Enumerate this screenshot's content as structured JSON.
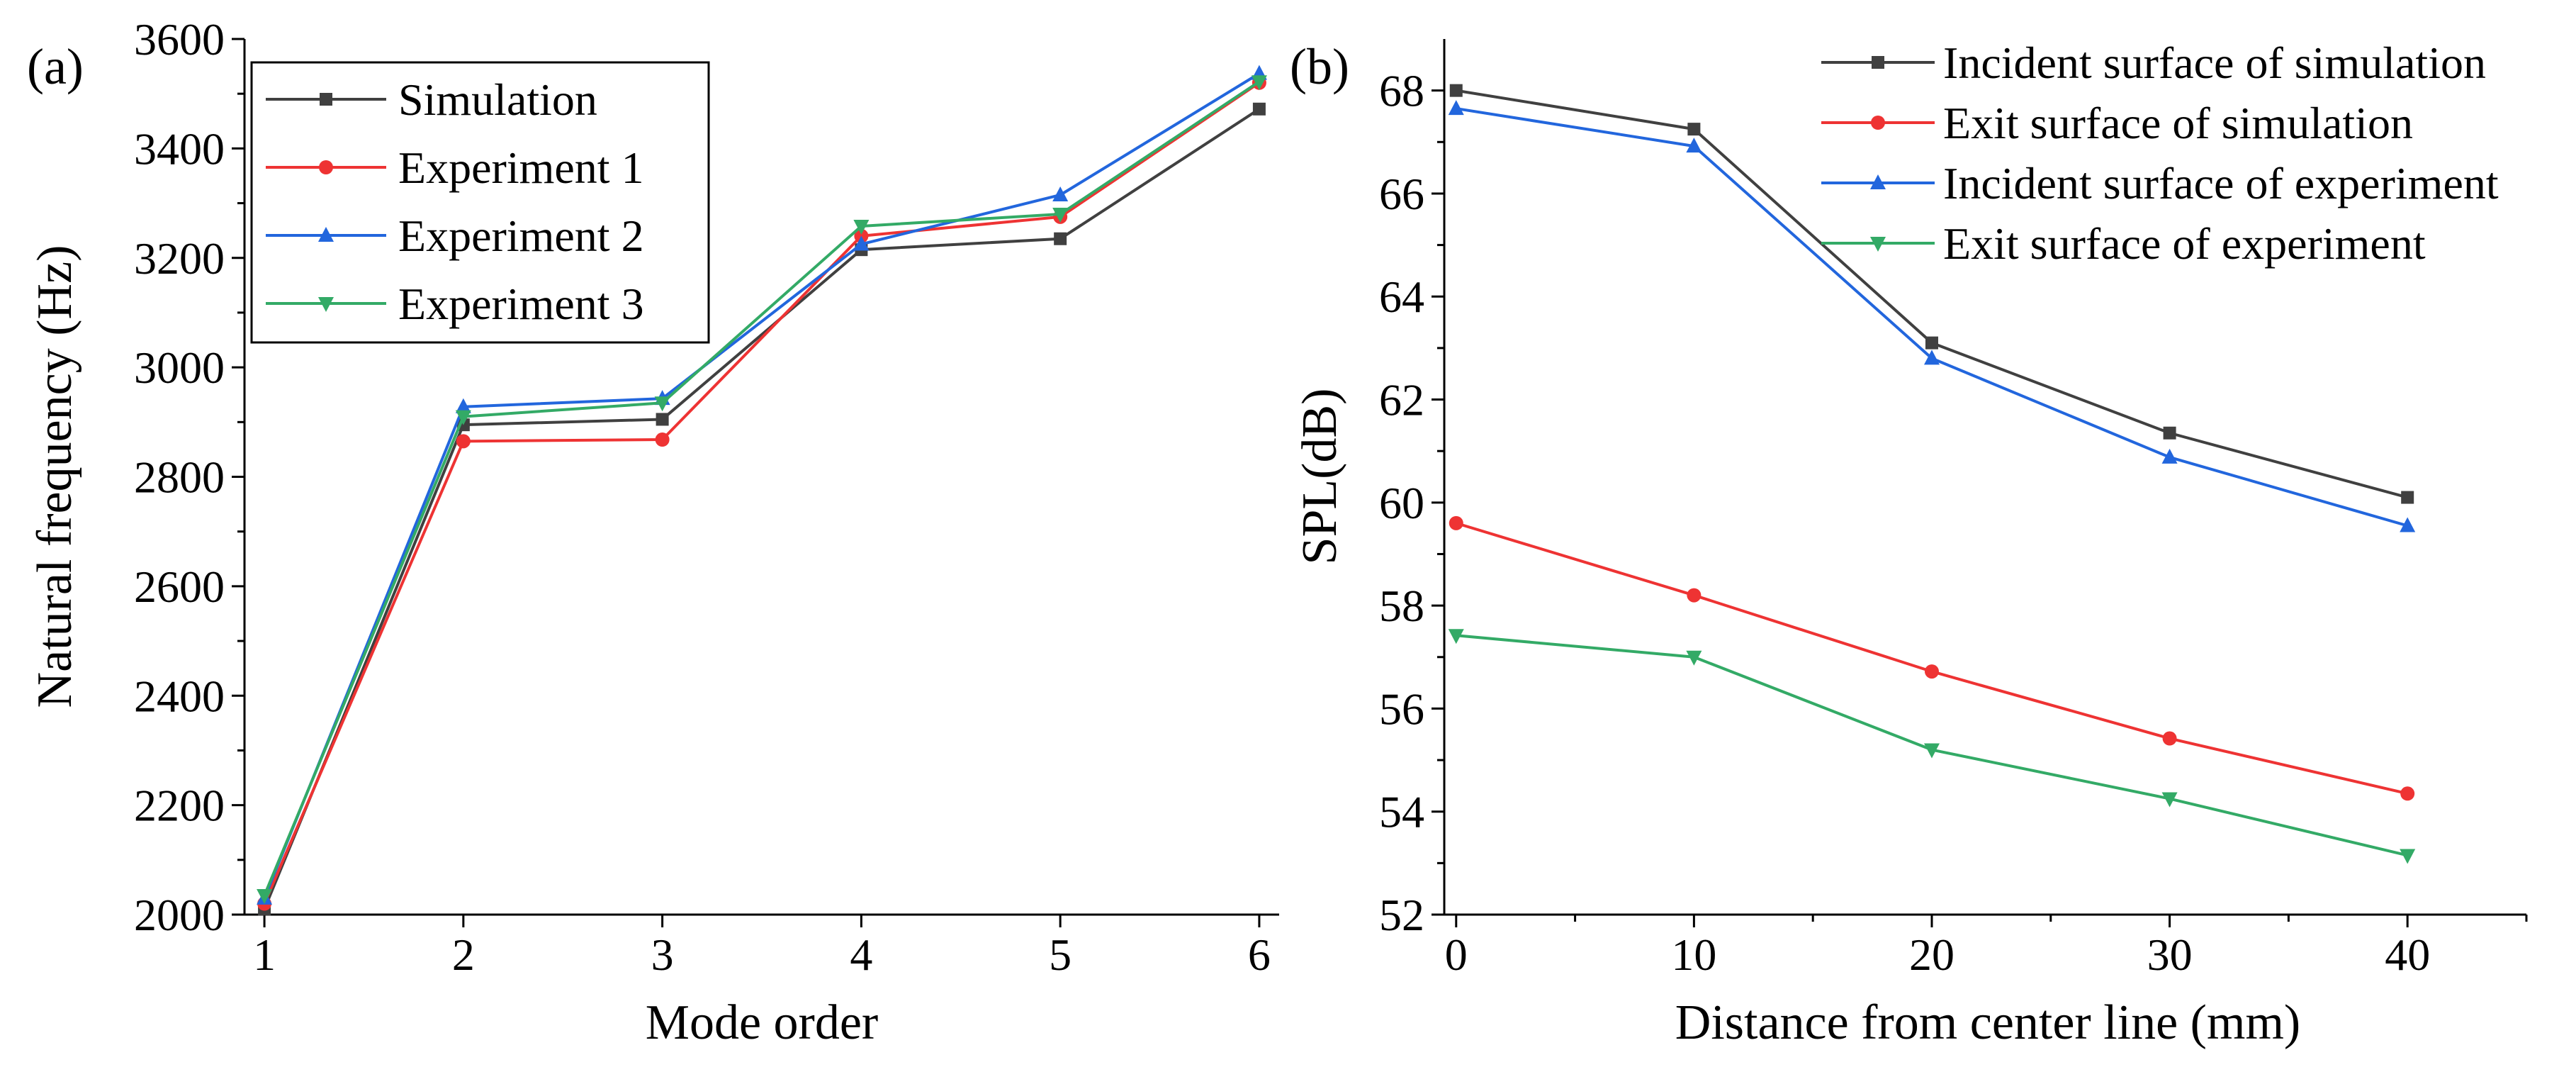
{
  "chart_data": [
    {
      "type": "line",
      "panel_label": "(a)",
      "xlabel": "Mode order",
      "ylabel": "Natural frequency (Hz)",
      "x": [
        1,
        2,
        3,
        4,
        5,
        6
      ],
      "xlim": [
        0.9,
        6.1
      ],
      "ylim": [
        2000,
        3600
      ],
      "xticks": [
        1,
        2,
        3,
        4,
        5,
        6
      ],
      "yticks": [
        2000,
        2200,
        2400,
        2600,
        2800,
        3000,
        3200,
        3400,
        3600
      ],
      "legend_position": "top-left",
      "series": [
        {
          "name": "Simulation",
          "color": "#404040",
          "marker": "square",
          "values": [
            2010,
            2895,
            2905,
            3215,
            3235,
            3472
          ]
        },
        {
          "name": "Experiment 1",
          "color": "#ee3333",
          "marker": "circle",
          "values": [
            2020,
            2865,
            2868,
            3240,
            3275,
            3520
          ]
        },
        {
          "name": "Experiment 2",
          "color": "#2266dd",
          "marker": "triangle-up",
          "values": [
            2030,
            2928,
            2943,
            3225,
            3315,
            3537
          ]
        },
        {
          "name": "Experiment 3",
          "color": "#33aa66",
          "marker": "triangle-down",
          "values": [
            2035,
            2910,
            2935,
            3258,
            3280,
            3522
          ]
        }
      ]
    },
    {
      "type": "line",
      "panel_label": "(b)",
      "xlabel": "Distance from center line (mm)",
      "ylabel": "SPL(dB)",
      "x": [
        0,
        10,
        20,
        30,
        40
      ],
      "xlim": [
        -0.5,
        45
      ],
      "ylim": [
        52,
        69
      ],
      "xticks": [
        0,
        10,
        20,
        30,
        40
      ],
      "yticks": [
        52,
        54,
        56,
        58,
        60,
        62,
        64,
        66,
        68
      ],
      "legend_position": "top-right",
      "series": [
        {
          "name": "Incident surface of simulation",
          "color": "#404040",
          "marker": "square",
          "values": [
            68.0,
            67.25,
            63.1,
            61.35,
            60.1
          ]
        },
        {
          "name": "Exit surface of simulation",
          "color": "#ee3333",
          "marker": "circle",
          "values": [
            59.6,
            58.2,
            56.72,
            55.42,
            54.35
          ]
        },
        {
          "name": "Incident surface of experiment",
          "color": "#2266dd",
          "marker": "triangle-up",
          "values": [
            67.65,
            66.92,
            62.8,
            60.88,
            59.55
          ]
        },
        {
          "name": "Exit surface of experiment",
          "color": "#33aa66",
          "marker": "triangle-down",
          "values": [
            57.42,
            57.0,
            55.2,
            54.25,
            53.15
          ]
        }
      ]
    }
  ]
}
